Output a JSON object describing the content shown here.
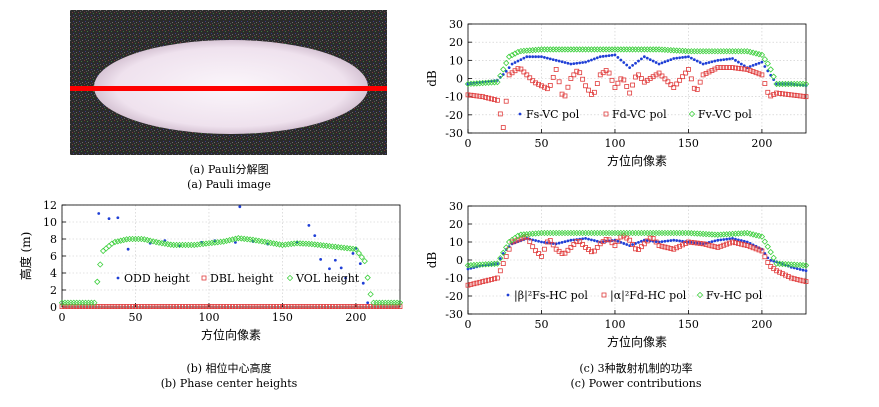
{
  "figure": {
    "caption_a_cn": "(a) Pauli分解图",
    "caption_a_en": "(a) Pauli image",
    "caption_b_cn": "(b) 相位中心高度",
    "caption_b_en": "(b) Phase center heights",
    "caption_c_cn": "(c) 3种散射机制的功率",
    "caption_c_en": "(c) Power contributions"
  },
  "colors": {
    "blue": "#1f3fd6",
    "red": "#e03b3b",
    "green": "#3ccf3c",
    "line": "#ff0000"
  },
  "chart_data": [
    {
      "id": "pauli",
      "type": "image",
      "description_label": "Pauli"
    },
    {
      "id": "heights",
      "type": "scatter",
      "xlabel": "方位向像素",
      "ylabel": "高度 (m)",
      "xlim": [
        0,
        230
      ],
      "ylim": [
        0,
        12
      ],
      "xticks": [
        0,
        50,
        100,
        150,
        200
      ],
      "yticks": [
        0,
        2,
        4,
        6,
        8,
        10,
        12
      ],
      "legend": "center",
      "series": [
        {
          "name": "ODD height",
          "color": "blue",
          "points": [
            [
              25,
              11
            ],
            [
              32,
              10.4
            ],
            [
              38,
              10.5
            ],
            [
              45,
              6.8
            ],
            [
              60,
              7.5
            ],
            [
              70,
              7.8
            ],
            [
              80,
              7.2
            ],
            [
              95,
              7.6
            ],
            [
              104,
              7.8
            ],
            [
              118,
              7.6
            ],
            [
              121,
              11.8
            ],
            [
              130,
              7.7
            ],
            [
              140,
              7.4
            ],
            [
              160,
              7.6
            ],
            [
              168,
              9.6
            ],
            [
              172,
              8.4
            ],
            [
              176,
              5.6
            ],
            [
              182,
              4.5
            ],
            [
              186,
              5.5
            ],
            [
              190,
              4.6
            ],
            [
              193,
              3.4
            ],
            [
              198,
              6.3
            ],
            [
              200,
              6.9
            ],
            [
              203,
              5.1
            ],
            [
              205,
              2.8
            ],
            [
              208,
              0.5
            ]
          ]
        },
        {
          "name": "DBL height",
          "color": "red",
          "points": [
            [
              0,
              0.05
            ],
            [
              230,
              0.05
            ]
          ]
        },
        {
          "name": "VOL height",
          "color": "green",
          "points": [
            [
              0,
              0.5
            ],
            [
              22,
              0.5
            ],
            [
              25,
              4.2
            ],
            [
              28,
              6.6
            ],
            [
              35,
              7.6
            ],
            [
              45,
              8.0
            ],
            [
              55,
              8.0
            ],
            [
              65,
              7.6
            ],
            [
              75,
              7.3
            ],
            [
              90,
              7.3
            ],
            [
              100,
              7.5
            ],
            [
              110,
              7.7
            ],
            [
              120,
              8.1
            ],
            [
              130,
              7.9
            ],
            [
              140,
              7.6
            ],
            [
              150,
              7.3
            ],
            [
              160,
              7.5
            ],
            [
              170,
              7.4
            ],
            [
              180,
              7.2
            ],
            [
              190,
              7.0
            ],
            [
              200,
              6.8
            ],
            [
              206,
              5.4
            ],
            [
              210,
              1.5
            ],
            [
              212,
              0.5
            ],
            [
              230,
              0.5
            ]
          ]
        }
      ]
    },
    {
      "id": "vc",
      "type": "scatter",
      "xlabel": "方位向像素",
      "ylabel": "dB",
      "xlim": [
        0,
        230
      ],
      "ylim": [
        -30,
        30
      ],
      "xticks": [
        0,
        50,
        100,
        150,
        200
      ],
      "yticks": [
        -30,
        -20,
        -10,
        0,
        10,
        20,
        30
      ],
      "legend": "bottom",
      "series": [
        {
          "name": "Fs-VC pol",
          "color": "blue",
          "points": [
            [
              0,
              -3
            ],
            [
              10,
              -2
            ],
            [
              20,
              -1
            ],
            [
              25,
              3
            ],
            [
              30,
              8
            ],
            [
              40,
              12
            ],
            [
              50,
              12
            ],
            [
              60,
              10
            ],
            [
              70,
              8
            ],
            [
              80,
              9
            ],
            [
              90,
              12
            ],
            [
              100,
              13
            ],
            [
              110,
              6
            ],
            [
              120,
              12
            ],
            [
              130,
              8
            ],
            [
              140,
              11
            ],
            [
              150,
              12
            ],
            [
              160,
              8
            ],
            [
              170,
              10
            ],
            [
              180,
              11
            ],
            [
              190,
              6
            ],
            [
              200,
              9
            ],
            [
              205,
              3
            ],
            [
              210,
              -3
            ],
            [
              220,
              -3
            ],
            [
              230,
              -4
            ]
          ]
        },
        {
          "name": "Fd-VC pol",
          "color": "red",
          "points": [
            [
              0,
              -9
            ],
            [
              10,
              -10
            ],
            [
              20,
              -12
            ],
            [
              24,
              -27
            ],
            [
              28,
              2
            ],
            [
              35,
              6
            ],
            [
              45,
              -2
            ],
            [
              55,
              -6
            ],
            [
              60,
              5
            ],
            [
              65,
              -12
            ],
            [
              70,
              0
            ],
            [
              75,
              5
            ],
            [
              80,
              -4
            ],
            [
              85,
              -10
            ],
            [
              90,
              2
            ],
            [
              95,
              5
            ],
            [
              100,
              -5
            ],
            [
              105,
              1
            ],
            [
              110,
              -8
            ],
            [
              115,
              3
            ],
            [
              120,
              -2
            ],
            [
              130,
              3
            ],
            [
              140,
              -5
            ],
            [
              150,
              5
            ],
            [
              155,
              -8
            ],
            [
              160,
              2
            ],
            [
              170,
              6
            ],
            [
              180,
              6
            ],
            [
              190,
              5
            ],
            [
              200,
              2
            ],
            [
              205,
              -10
            ],
            [
              210,
              -8
            ],
            [
              220,
              -9
            ],
            [
              230,
              -10
            ]
          ]
        },
        {
          "name": "Fv-VC pol",
          "color": "green",
          "points": [
            [
              0,
              -3
            ],
            [
              20,
              -2
            ],
            [
              24,
              5
            ],
            [
              28,
              12
            ],
            [
              35,
              15
            ],
            [
              50,
              16
            ],
            [
              70,
              16
            ],
            [
              90,
              16
            ],
            [
              110,
              16
            ],
            [
              130,
              16
            ],
            [
              150,
              15
            ],
            [
              170,
              15
            ],
            [
              190,
              15
            ],
            [
              200,
              13
            ],
            [
              205,
              7
            ],
            [
              210,
              -3
            ],
            [
              230,
              -3
            ]
          ]
        }
      ]
    },
    {
      "id": "hc",
      "type": "scatter",
      "xlabel": "方位向像素",
      "ylabel": "dB",
      "xlim": [
        0,
        230
      ],
      "ylim": [
        -30,
        30
      ],
      "xticks": [
        0,
        50,
        100,
        150,
        200
      ],
      "yticks": [
        -30,
        -20,
        -10,
        0,
        10,
        20,
        30
      ],
      "legend": "bottom",
      "series": [
        {
          "name": "|β|²Fs-HC pol",
          "color": "blue",
          "points": [
            [
              0,
              -5
            ],
            [
              10,
              -3
            ],
            [
              20,
              -2
            ],
            [
              25,
              5
            ],
            [
              30,
              9
            ],
            [
              40,
              12
            ],
            [
              50,
              10
            ],
            [
              60,
              9
            ],
            [
              70,
              11
            ],
            [
              80,
              12
            ],
            [
              90,
              10
            ],
            [
              100,
              11
            ],
            [
              110,
              8
            ],
            [
              120,
              11
            ],
            [
              130,
              10
            ],
            [
              140,
              11
            ],
            [
              150,
              10
            ],
            [
              160,
              9
            ],
            [
              170,
              11
            ],
            [
              180,
              12
            ],
            [
              190,
              10
            ],
            [
              200,
              6
            ],
            [
              205,
              0
            ],
            [
              210,
              -1
            ],
            [
              220,
              -4
            ],
            [
              230,
              -6
            ]
          ]
        },
        {
          "name": "|α|²Fd-HC pol",
          "color": "red",
          "points": [
            [
              0,
              -14
            ],
            [
              10,
              -12
            ],
            [
              20,
              -10
            ],
            [
              25,
              0
            ],
            [
              30,
              10
            ],
            [
              40,
              13
            ],
            [
              45,
              6
            ],
            [
              50,
              2
            ],
            [
              55,
              12
            ],
            [
              60,
              6
            ],
            [
              65,
              3
            ],
            [
              70,
              7
            ],
            [
              75,
              11
            ],
            [
              80,
              7
            ],
            [
              85,
              4
            ],
            [
              90,
              9
            ],
            [
              95,
              12
            ],
            [
              100,
              8
            ],
            [
              105,
              14
            ],
            [
              110,
              11
            ],
            [
              115,
              5
            ],
            [
              120,
              9
            ],
            [
              125,
              13
            ],
            [
              130,
              8
            ],
            [
              140,
              6
            ],
            [
              150,
              10
            ],
            [
              160,
              9
            ],
            [
              170,
              7
            ],
            [
              180,
              10
            ],
            [
              190,
              8
            ],
            [
              200,
              5
            ],
            [
              205,
              -3
            ],
            [
              210,
              -6
            ],
            [
              220,
              -10
            ],
            [
              230,
              -12
            ]
          ]
        },
        {
          "name": "Fv-HC pol",
          "color": "green",
          "points": [
            [
              0,
              -3
            ],
            [
              20,
              -2
            ],
            [
              24,
              4
            ],
            [
              28,
              10
            ],
            [
              35,
              14
            ],
            [
              50,
              15
            ],
            [
              70,
              15
            ],
            [
              90,
              15
            ],
            [
              110,
              15
            ],
            [
              130,
              15
            ],
            [
              150,
              15
            ],
            [
              170,
              14
            ],
            [
              190,
              15
            ],
            [
              200,
              13
            ],
            [
              205,
              6
            ],
            [
              210,
              -2
            ],
            [
              230,
              -3
            ]
          ]
        }
      ]
    }
  ]
}
